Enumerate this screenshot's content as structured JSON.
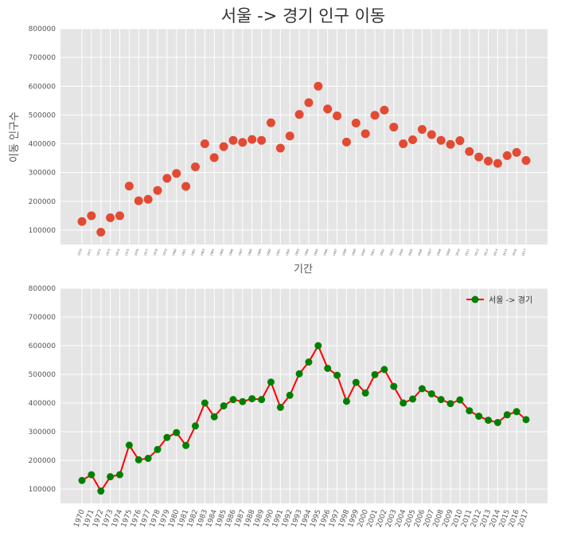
{
  "chart_data": [
    {
      "type": "scatter",
      "title": "서울 -> 경기 인구 이동",
      "xlabel": "기간",
      "ylabel": "이동 인구수",
      "ylim": [
        50000,
        800000
      ],
      "yticks": [
        100000,
        200000,
        300000,
        400000,
        500000,
        600000,
        700000,
        800000
      ],
      "grid": true,
      "marker_color": "#E24A33",
      "background": "#E5E5E5",
      "x": [
        "1970",
        "1971",
        "1972",
        "1973",
        "1974",
        "1975",
        "1976",
        "1977",
        "1978",
        "1979",
        "1980",
        "1981",
        "1982",
        "1983",
        "1984",
        "1985",
        "1986",
        "1987",
        "1988",
        "1989",
        "1990",
        "1991",
        "1992",
        "1993",
        "1994",
        "1995",
        "1996",
        "1997",
        "1998",
        "1999",
        "2000",
        "2001",
        "2002",
        "2003",
        "2004",
        "2005",
        "2006",
        "2007",
        "2008",
        "2009",
        "2010",
        "2011",
        "2012",
        "2013",
        "2014",
        "2015",
        "2016",
        "2017"
      ],
      "values": [
        130000,
        150000,
        93000,
        143000,
        150000,
        253000,
        202000,
        207000,
        238000,
        280000,
        297000,
        252000,
        320000,
        400000,
        352000,
        390000,
        412000,
        405000,
        415000,
        412000,
        473000,
        385000,
        427000,
        502000,
        543000,
        600000,
        521000,
        497000,
        406000,
        472000,
        435000,
        499000,
        517000,
        458000,
        400000,
        414000,
        450000,
        432000,
        412000,
        398000,
        411000,
        373000,
        354000,
        340000,
        332000,
        359000,
        370000,
        342000
      ]
    },
    {
      "type": "line",
      "ylim": [
        50000,
        800000
      ],
      "yticks": [
        100000,
        200000,
        300000,
        400000,
        500000,
        600000,
        700000,
        800000
      ],
      "grid": true,
      "legend_position": "top-right",
      "background": "#E5E5E5",
      "series": [
        {
          "name": "서울 -> 경기",
          "line_color": "#FF0000",
          "marker_color": "#008000",
          "values": [
            130000,
            150000,
            93000,
            143000,
            150000,
            253000,
            202000,
            207000,
            238000,
            280000,
            297000,
            252000,
            320000,
            400000,
            352000,
            390000,
            412000,
            405000,
            415000,
            412000,
            473000,
            385000,
            427000,
            502000,
            543000,
            600000,
            521000,
            497000,
            406000,
            472000,
            435000,
            499000,
            517000,
            458000,
            400000,
            414000,
            450000,
            432000,
            412000,
            398000,
            411000,
            373000,
            354000,
            340000,
            332000,
            359000,
            370000,
            342000
          ]
        }
      ],
      "x": [
        "1970",
        "1971",
        "1972",
        "1973",
        "1974",
        "1975",
        "1976",
        "1977",
        "1978",
        "1979",
        "1980",
        "1981",
        "1982",
        "1983",
        "1984",
        "1985",
        "1986",
        "1987",
        "1988",
        "1989",
        "1990",
        "1991",
        "1992",
        "1993",
        "1994",
        "1995",
        "1996",
        "1997",
        "1998",
        "1999",
        "2000",
        "2001",
        "2002",
        "2003",
        "2004",
        "2005",
        "2006",
        "2007",
        "2008",
        "2009",
        "2010",
        "2011",
        "2012",
        "2013",
        "2014",
        "2015",
        "2016",
        "2017"
      ]
    }
  ]
}
